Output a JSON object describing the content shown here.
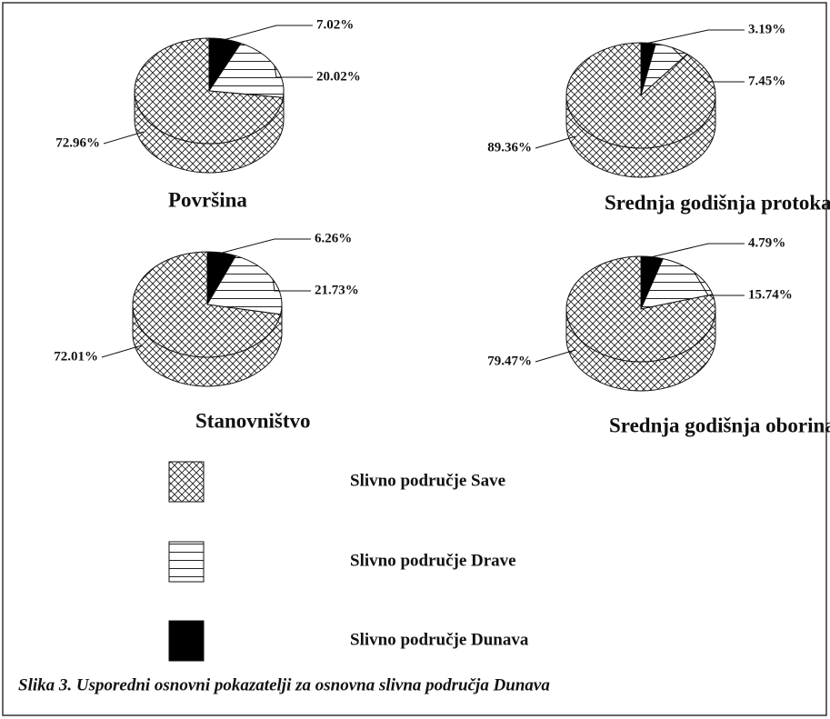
{
  "chart_data": [
    {
      "type": "pie",
      "title": "Površina",
      "values": [
        72.96,
        20.02,
        7.02
      ],
      "value_labels": [
        "72.96%",
        "20.02%",
        "7.02%"
      ]
    },
    {
      "type": "pie",
      "title": "Srednja godišnja protoka",
      "values": [
        89.36,
        7.45,
        3.19
      ],
      "value_labels": [
        "89.36%",
        "7.45%",
        "3.19%"
      ]
    },
    {
      "type": "pie",
      "title": "Stanovništvo",
      "values": [
        72.01,
        21.73,
        6.26
      ],
      "value_labels": [
        "72.01%",
        "21.73%",
        "6.26%"
      ]
    },
    {
      "type": "pie",
      "title": "Srednja godišnja oborina",
      "values": [
        79.47,
        15.74,
        4.79
      ],
      "value_labels": [
        "79.47%",
        "15.74%",
        "4.79%"
      ]
    }
  ],
  "legend": {
    "items": [
      {
        "label": "Slivno područje Save",
        "pattern": "crosshatch"
      },
      {
        "label": "Slivno područje Drave",
        "pattern": "hlines"
      },
      {
        "label": "Slivno područje Dunava",
        "pattern": "solid"
      }
    ]
  },
  "caption": "Slika 3. Usporedni osnovni pokazatelji za osnovna slivna područja Dunava"
}
